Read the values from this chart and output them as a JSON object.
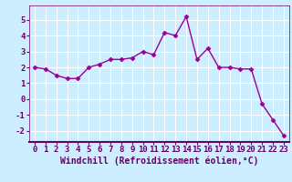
{
  "x": [
    0,
    1,
    2,
    3,
    4,
    5,
    6,
    7,
    8,
    9,
    10,
    11,
    12,
    13,
    14,
    15,
    16,
    17,
    18,
    19,
    20,
    21,
    22,
    23
  ],
  "y": [
    2.0,
    1.9,
    1.5,
    1.3,
    1.3,
    2.0,
    2.2,
    2.5,
    2.5,
    2.6,
    3.0,
    2.8,
    4.2,
    4.0,
    5.2,
    2.5,
    3.2,
    2.0,
    2.0,
    1.9,
    1.9,
    -0.3,
    -1.3,
    -2.3
  ],
  "ylim": [
    -2.7,
    5.9
  ],
  "xlim": [
    -0.5,
    23.5
  ],
  "yticks": [
    -2,
    -1,
    0,
    1,
    2,
    3,
    4,
    5
  ],
  "xticks": [
    0,
    1,
    2,
    3,
    4,
    5,
    6,
    7,
    8,
    9,
    10,
    11,
    12,
    13,
    14,
    15,
    16,
    17,
    18,
    19,
    20,
    21,
    22,
    23
  ],
  "xlabel": "Windchill (Refroidissement éolien,°C)",
  "line_color": "#990099",
  "marker": "D",
  "marker_size": 2.5,
  "bg_color": "#cceeff",
  "grid_color": "#ffffff",
  "spine_color": "#660066",
  "tick_color": "#660066",
  "xlabel_color": "#660066",
  "xlabel_bg": "#cceeff",
  "font_size": 6.5,
  "xlabel_fontsize": 7.0,
  "line_width": 1.0
}
